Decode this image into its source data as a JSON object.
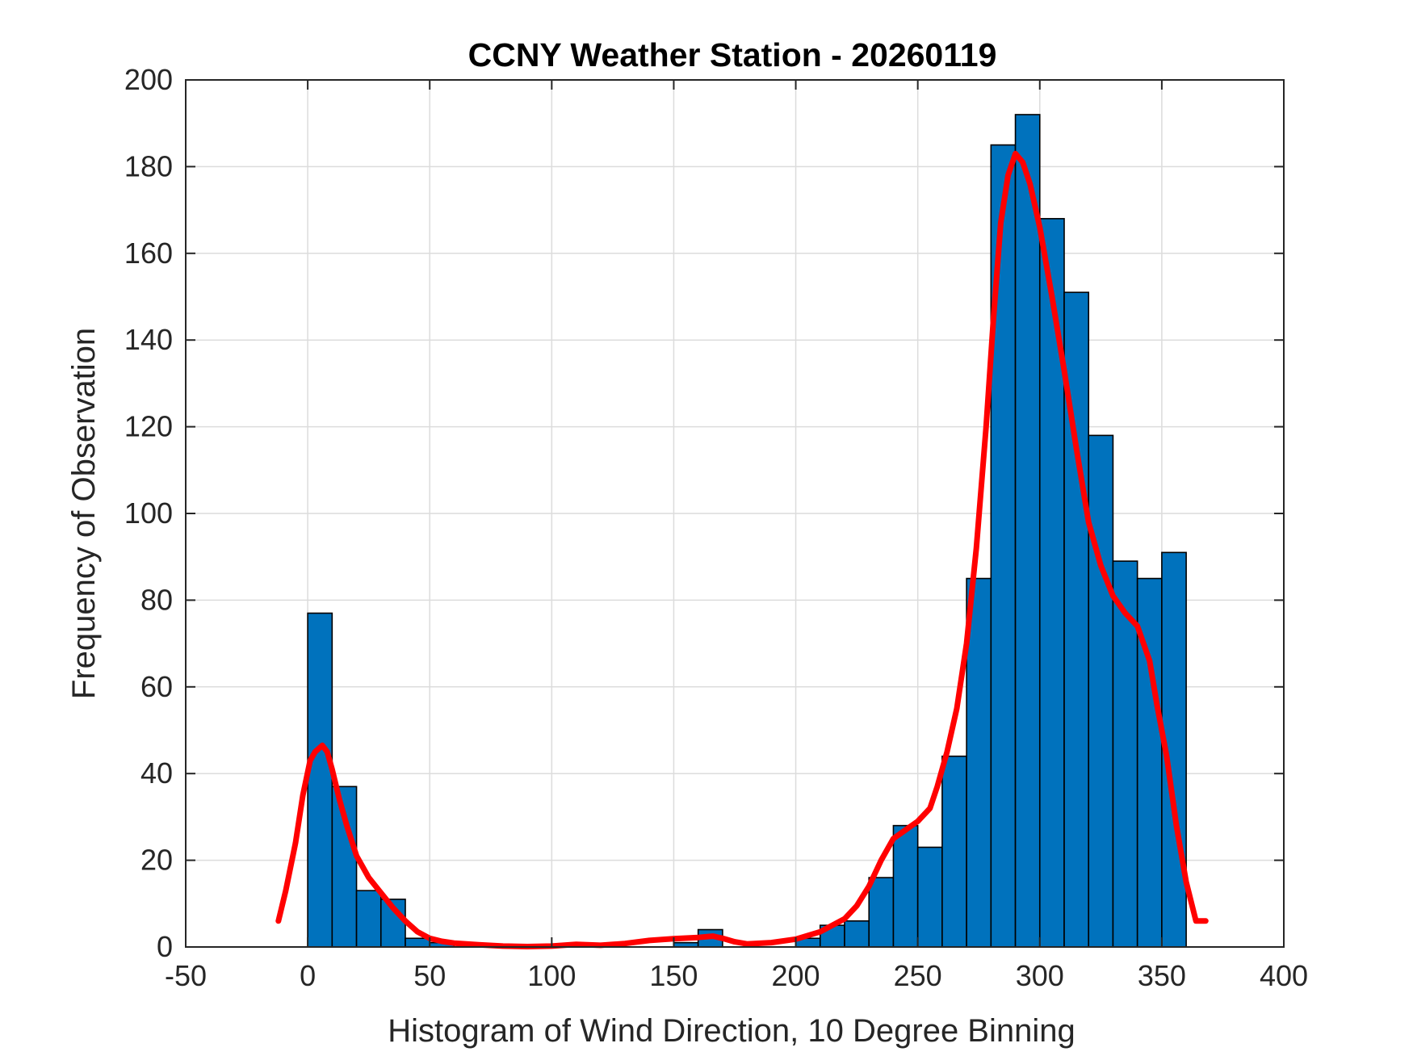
{
  "chart_data": {
    "type": "bar",
    "title": "CCNY Weather Station - 20260119",
    "xlabel": "Histogram of Wind Direction, 10 Degree Binning",
    "ylabel": "Frequency of Observation",
    "xlim": [
      -50,
      400
    ],
    "ylim": [
      0,
      200
    ],
    "grid": true,
    "xticks": [
      -50,
      0,
      50,
      100,
      150,
      200,
      250,
      300,
      350,
      400
    ],
    "yticks": [
      0,
      20,
      40,
      60,
      80,
      100,
      120,
      140,
      160,
      180,
      200
    ],
    "bin_width": 10,
    "bins": [
      {
        "x0": 0,
        "x1": 10,
        "count": 77
      },
      {
        "x0": 10,
        "x1": 20,
        "count": 37
      },
      {
        "x0": 20,
        "x1": 30,
        "count": 13
      },
      {
        "x0": 30,
        "x1": 40,
        "count": 11
      },
      {
        "x0": 40,
        "x1": 50,
        "count": 2
      },
      {
        "x0": 50,
        "x1": 60,
        "count": 1
      },
      {
        "x0": 60,
        "x1": 70,
        "count": 0
      },
      {
        "x0": 70,
        "x1": 80,
        "count": 0
      },
      {
        "x0": 80,
        "x1": 90,
        "count": 0
      },
      {
        "x0": 90,
        "x1": 100,
        "count": 0
      },
      {
        "x0": 100,
        "x1": 110,
        "count": 0
      },
      {
        "x0": 110,
        "x1": 120,
        "count": 0
      },
      {
        "x0": 120,
        "x1": 130,
        "count": 0
      },
      {
        "x0": 130,
        "x1": 140,
        "count": 0
      },
      {
        "x0": 140,
        "x1": 150,
        "count": 0
      },
      {
        "x0": 150,
        "x1": 160,
        "count": 1
      },
      {
        "x0": 160,
        "x1": 170,
        "count": 4
      },
      {
        "x0": 170,
        "x1": 180,
        "count": 0
      },
      {
        "x0": 180,
        "x1": 190,
        "count": 0
      },
      {
        "x0": 190,
        "x1": 200,
        "count": 0
      },
      {
        "x0": 200,
        "x1": 210,
        "count": 2
      },
      {
        "x0": 210,
        "x1": 220,
        "count": 5
      },
      {
        "x0": 220,
        "x1": 230,
        "count": 6
      },
      {
        "x0": 230,
        "x1": 240,
        "count": 16
      },
      {
        "x0": 240,
        "x1": 250,
        "count": 28
      },
      {
        "x0": 250,
        "x1": 260,
        "count": 23
      },
      {
        "x0": 260,
        "x1": 270,
        "count": 44
      },
      {
        "x0": 270,
        "x1": 280,
        "count": 85
      },
      {
        "x0": 280,
        "x1": 290,
        "count": 185
      },
      {
        "x0": 290,
        "x1": 300,
        "count": 192
      },
      {
        "x0": 300,
        "x1": 310,
        "count": 168
      },
      {
        "x0": 310,
        "x1": 320,
        "count": 151
      },
      {
        "x0": 320,
        "x1": 330,
        "count": 118
      },
      {
        "x0": 330,
        "x1": 340,
        "count": 89
      },
      {
        "x0": 340,
        "x1": 350,
        "count": 85
      },
      {
        "x0": 350,
        "x1": 360,
        "count": 91
      }
    ],
    "series": [
      {
        "name": "density curve",
        "type": "line",
        "color": "#FF0000",
        "x": [
          -12,
          -9,
          -5,
          -2,
          1,
          3,
          6,
          8,
          10,
          13,
          16,
          20,
          25,
          30,
          35,
          40,
          45,
          50,
          55,
          60,
          70,
          80,
          90,
          100,
          110,
          120,
          130,
          140,
          150,
          160,
          166,
          170,
          175,
          180,
          190,
          200,
          210,
          220,
          225,
          230,
          235,
          240,
          245,
          250,
          255,
          258,
          262,
          266,
          270,
          274,
          278,
          281,
          284,
          287,
          290,
          293,
          296,
          300,
          305,
          310,
          315,
          320,
          325,
          330,
          335,
          340,
          345,
          348,
          352,
          356,
          360,
          364,
          368
        ],
        "y": [
          6,
          13,
          24,
          35,
          43,
          45,
          46.5,
          45,
          41,
          34,
          28,
          21,
          16,
          12.5,
          9,
          6,
          3.5,
          2,
          1.3,
          0.9,
          0.5,
          0.2,
          0.1,
          0.2,
          0.6,
          0.4,
          0.8,
          1.5,
          1.9,
          2.2,
          2.5,
          2,
          1.2,
          0.7,
          1.0,
          1.8,
          3.5,
          6.5,
          9.5,
          14,
          20,
          25,
          27,
          29,
          32,
          37,
          45,
          55,
          70,
          92,
          120,
          145,
          167,
          178,
          183,
          181,
          176,
          166,
          150,
          133,
          115,
          98,
          88,
          81,
          77,
          74,
          66,
          56,
          44,
          28,
          15,
          6,
          6
        ]
      }
    ]
  }
}
